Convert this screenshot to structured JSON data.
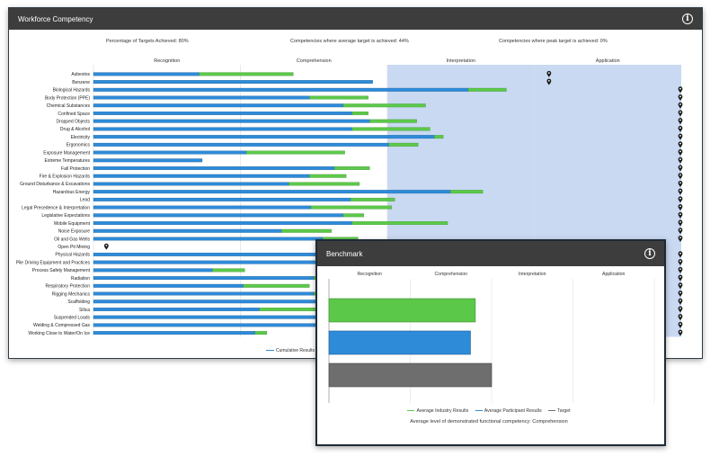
{
  "main_panel": {
    "title": "Workforce Competency",
    "info_icon": "info-circle-icon",
    "stats": {
      "targets_achieved": "Percentage of Targets Achieved: 80%",
      "avg_target": "Competencies where average target is achieved: 44%",
      "peak_target": "Competencies where peak target is achieved: 0%"
    },
    "legend": {
      "cumulative": "Cumulative Results",
      "other": "C"
    }
  },
  "benchmark_panel": {
    "title": "Benchmark",
    "info_icon": "info-circle-icon",
    "legend": {
      "industry": "Average Industry Results",
      "participant": "Average Participant Results",
      "target": "Target"
    },
    "caption": "Average level of demonstrated functional competency: Comprehension"
  },
  "colors": {
    "blue": "#2e8bd8",
    "green": "#5cc84a",
    "target_gray": "#6e6e6e",
    "highlight_band": "#c9d9f2",
    "header": "#3d3d3d"
  },
  "chart_data": [
    {
      "type": "bar",
      "orientation": "horizontal",
      "stacked": true,
      "levels": [
        "Recognition",
        "Comprehension",
        "Interpretation",
        "Application"
      ],
      "xlim": [
        0,
        4
      ],
      "highlight_band": [
        "Interpretation",
        "Application"
      ],
      "marker_icon": "map-pin-icon",
      "categories": [
        "Asbestos",
        "Benzene",
        "Biological Hazards",
        "Body Protection (PPE)",
        "Chemical Substances",
        "Confined Space",
        "Dropped Objects",
        "Drug & Alcohol",
        "Electricity",
        "Ergonomics",
        "Exposure Management",
        "Extreme Temperatures",
        "Fall Protection",
        "Fire & Explosion Hazards",
        "Ground Disturbance & Excavations",
        "Hazardous Energy",
        "Lead",
        "Legal Precedence & Interpretation",
        "Legislative Expectations",
        "Mobile Equipment",
        "Noise Exposure",
        "Oil and Gas Wells",
        "Open Pit Mining",
        "Physical Hazards",
        "Pile Driving Equipment and Practices",
        "Process Safety Management",
        "Radiation",
        "Respiratory Protection",
        "Rigging Mechanics",
        "Scaffolding",
        "Silica",
        "Suspended Loads",
        "Welding & Compressed Gas",
        "Working Close to Water/On Ice"
      ],
      "series": [
        {
          "name": "Cumulative Results",
          "values": [
            0.72,
            1.9,
            2.55,
            1.47,
            1.7,
            1.76,
            1.88,
            1.76,
            2.32,
            2.01,
            1.04,
            0.74,
            1.64,
            1.47,
            1.33,
            2.43,
            1.75,
            1.48,
            1.7,
            1.76,
            1.28,
            1.56,
            0,
            1.9,
            1.9,
            0.81,
            1.5,
            1.02,
            1.5,
            1.58,
            1.13,
            1.9,
            1.55,
            1.1
          ]
        },
        {
          "values": [
            0.64,
            0,
            0.26,
            0.4,
            0.56,
            0.11,
            0.32,
            0.53,
            0.06,
            0.2,
            0.67,
            0,
            0.24,
            0.25,
            0.48,
            0.22,
            0.3,
            0.55,
            0.14,
            0.65,
            0.34,
            0.24,
            0,
            0,
            0,
            0.22,
            0.3,
            0.45,
            0.3,
            0.3,
            0.4,
            0,
            0.3,
            0.08
          ]
        }
      ],
      "markers": [
        "Application",
        "Application",
        "end",
        "end",
        "end",
        "end",
        "end",
        "end",
        "end",
        "end",
        "end",
        "end",
        "end",
        "end",
        "end",
        "end",
        "end",
        "end",
        "end",
        "end",
        "end",
        "end",
        "Recognition",
        "end",
        "end",
        "end",
        "end",
        "end",
        "end",
        "end",
        "end",
        "end",
        "end",
        "end"
      ]
    },
    {
      "type": "bar",
      "orientation": "horizontal",
      "levels": [
        "Recognition",
        "Comprehension",
        "Interpretation",
        "Application"
      ],
      "xlim": [
        0,
        4
      ],
      "series": [
        {
          "name": "Average Industry Results",
          "values": [
            1.8
          ]
        },
        {
          "name": "Average Participant Results",
          "values": [
            1.74
          ]
        },
        {
          "name": "Target",
          "values": [
            2.0
          ]
        }
      ]
    }
  ]
}
